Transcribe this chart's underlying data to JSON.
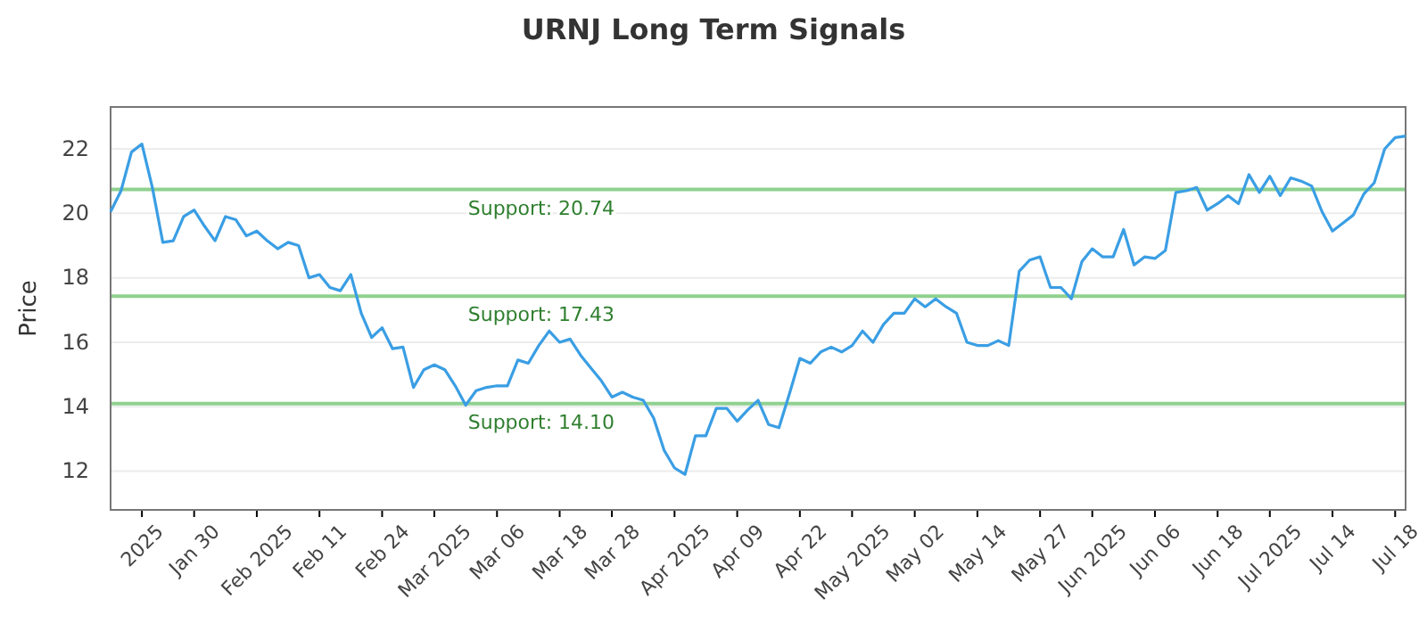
{
  "chart_data": {
    "type": "line",
    "title": "URNJ Long Term Signals",
    "ylabel": "Price",
    "categories": [
      null,
      null,
      null,
      "2025",
      null,
      null,
      null,
      null,
      "Jan 30",
      null,
      null,
      null,
      null,
      null,
      "Feb 2025",
      null,
      null,
      null,
      null,
      null,
      "Feb 11",
      null,
      null,
      null,
      null,
      null,
      "Feb 24",
      null,
      null,
      null,
      null,
      "Mar 2025",
      null,
      null,
      null,
      null,
      null,
      "Mar 06",
      null,
      null,
      null,
      null,
      null,
      "Mar 18",
      null,
      null,
      null,
      null,
      "Mar 28",
      null,
      null,
      null,
      null,
      null,
      "Apr 2025",
      null,
      null,
      null,
      null,
      null,
      "Apr 09",
      null,
      null,
      null,
      null,
      null,
      "Apr 22",
      null,
      null,
      null,
      null,
      "May 2025",
      null,
      null,
      null,
      null,
      null,
      "May 02",
      null,
      null,
      null,
      null,
      null,
      "May 14",
      null,
      null,
      null,
      null,
      null,
      "May 27",
      null,
      null,
      null,
      null,
      "Jun 2025",
      null,
      null,
      null,
      null,
      null,
      "Jun 06",
      null,
      null,
      null,
      null,
      null,
      "Jun 18",
      null,
      null,
      null,
      null,
      "Jul 2025",
      null,
      null,
      null,
      null,
      null,
      "Jul 14",
      null,
      null,
      null,
      null,
      null,
      "Jul 18",
      null
    ],
    "series": [
      {
        "color": "#3a9ee4",
        "values": [
          20.05,
          20.7,
          21.9,
          22.15,
          20.8,
          19.1,
          19.15,
          19.9,
          20.1,
          19.6,
          19.15,
          19.9,
          19.8,
          19.3,
          19.45,
          19.15,
          18.9,
          19.1,
          19.0,
          18.0,
          18.1,
          17.7,
          17.6,
          18.1,
          16.9,
          16.15,
          16.45,
          15.8,
          15.85,
          14.6,
          15.15,
          15.3,
          15.15,
          14.65,
          14.05,
          14.5,
          14.6,
          14.65,
          14.65,
          15.45,
          15.35,
          15.9,
          16.35,
          16.0,
          16.1,
          15.6,
          15.2,
          14.8,
          14.3,
          14.45,
          14.3,
          14.2,
          13.65,
          12.65,
          12.1,
          11.9,
          13.1,
          13.1,
          13.95,
          13.95,
          13.55,
          13.9,
          14.2,
          13.45,
          13.35,
          14.4,
          15.5,
          15.35,
          15.7,
          15.85,
          15.7,
          15.9,
          16.35,
          16.0,
          16.55,
          16.9,
          16.9,
          17.35,
          17.1,
          17.35,
          17.1,
          16.9,
          16.0,
          15.9,
          15.9,
          16.05,
          15.9,
          18.2,
          18.55,
          18.65,
          17.7,
          17.7,
          17.35,
          18.5,
          18.9,
          18.65,
          18.65,
          19.5,
          18.4,
          18.65,
          18.6,
          18.85,
          20.65,
          20.7,
          20.8,
          20.1,
          20.3,
          20.55,
          20.3,
          21.2,
          20.65,
          21.15,
          20.55,
          21.1,
          21.0,
          20.85,
          20.05,
          19.45,
          19.7,
          19.95,
          20.6,
          20.95,
          22.0,
          22.35,
          22.4
        ]
      }
    ],
    "ylim": [
      10.8,
      23.3
    ],
    "yticks": [
      12,
      14,
      16,
      18,
      20,
      22
    ],
    "grid": "y",
    "ref_lines": [
      {
        "axis": "y",
        "value": 20.74,
        "label": "Support: 20.74",
        "color": "#8fd18f"
      },
      {
        "axis": "y",
        "value": 17.43,
        "label": "Support: 17.43",
        "color": "#8fd18f"
      },
      {
        "axis": "y",
        "value": 14.1,
        "label": "Support: 14.10",
        "color": "#8fd18f"
      }
    ],
    "marker": "none",
    "line_style": "solid"
  }
}
